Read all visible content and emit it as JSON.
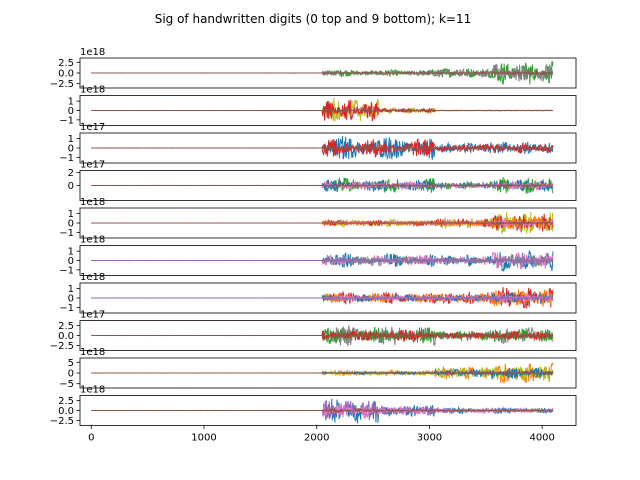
{
  "figure": {
    "title": "Sig of handwritten digits (0 top and 9 bottom); k=11"
  },
  "chart_data": {
    "type": "line",
    "title": "Sig of handwritten digits (0 top and 9 bottom); k=11",
    "shared_x": {
      "xlim": [
        -100,
        4300
      ],
      "ticks": [
        0,
        1000,
        2000,
        3000,
        4000
      ],
      "tick_labels": [
        "0",
        "1000",
        "2000",
        "3000",
        "4000"
      ],
      "signal_range": [
        0,
        4095
      ]
    },
    "palette": [
      "#1f77b4",
      "#ff7f0e",
      "#2ca02c",
      "#d62728",
      "#9467bd",
      "#8c564b",
      "#e377c2",
      "#7f7f7f",
      "#bcbd22",
      "#17becf"
    ],
    "subplots": [
      {
        "digit": 0,
        "offset_text": "1e18",
        "ylim": [
          -3.5,
          3.5
        ],
        "yticks": [
          2.5,
          0.0,
          -2.5
        ],
        "ytick_labels": [
          "2.5",
          "0.0",
          "−2.5"
        ],
        "series_colors": [
          "#2ca02c",
          "#7f7f7f",
          "#8c564b"
        ],
        "bursts": [
          {
            "start": 2050,
            "end": 3050,
            "amp": 0.8
          },
          {
            "start": 3050,
            "end": 3550,
            "amp": 1.2
          },
          {
            "start": 3550,
            "end": 4095,
            "amp": 2.8
          }
        ]
      },
      {
        "digit": 1,
        "offset_text": "1e18",
        "ylim": [
          -1.6,
          1.6
        ],
        "yticks": [
          1,
          0,
          -1
        ],
        "ytick_labels": [
          "1",
          "0",
          "−1"
        ],
        "series_colors": [
          "#bcbd22",
          "#d62728",
          "#8c564b"
        ],
        "bursts": [
          {
            "start": 2050,
            "end": 2550,
            "amp": 1.5
          },
          {
            "start": 2550,
            "end": 3050,
            "amp": 0.3
          },
          {
            "start": 3050,
            "end": 4095,
            "amp": 0.04
          }
        ]
      },
      {
        "digit": 2,
        "offset_text": "1e17",
        "ylim": [
          -1.6,
          1.6
        ],
        "yticks": [
          1,
          0,
          -1
        ],
        "ytick_labels": [
          "1",
          "0",
          "−1"
        ],
        "series_colors": [
          "#1f77b4",
          "#d62728",
          "#8c564b"
        ],
        "bursts": [
          {
            "start": 2050,
            "end": 3050,
            "amp": 1.3
          },
          {
            "start": 3050,
            "end": 3550,
            "amp": 0.6
          },
          {
            "start": 3550,
            "end": 4095,
            "amp": 0.7
          }
        ]
      },
      {
        "digit": 3,
        "offset_text": "1e17",
        "ylim": [
          -2.3,
          2.3
        ],
        "yticks": [
          2,
          0
        ],
        "ytick_labels": [
          "2",
          "0"
        ],
        "series_colors": [
          "#2ca02c",
          "#1f77b4",
          "#e377c2",
          "#8c564b"
        ],
        "bursts": [
          {
            "start": 2050,
            "end": 3050,
            "amp": 1.2
          },
          {
            "start": 3050,
            "end": 3550,
            "amp": 0.6
          },
          {
            "start": 3550,
            "end": 4095,
            "amp": 1.3
          }
        ]
      },
      {
        "digit": 4,
        "offset_text": "1e18",
        "ylim": [
          -1.6,
          1.6
        ],
        "yticks": [
          1,
          0,
          -1
        ],
        "ytick_labels": [
          "1",
          "0",
          "−1"
        ],
        "series_colors": [
          "#bcbd22",
          "#d62728",
          "#ff7f0e",
          "#e377c2",
          "#8c564b"
        ],
        "bursts": [
          {
            "start": 2050,
            "end": 3050,
            "amp": 0.4
          },
          {
            "start": 3050,
            "end": 3550,
            "amp": 0.6
          },
          {
            "start": 3550,
            "end": 4095,
            "amp": 1.3
          }
        ]
      },
      {
        "digit": 5,
        "offset_text": "1e18",
        "ylim": [
          -1.6,
          1.6
        ],
        "yticks": [
          1,
          0,
          -1
        ],
        "ytick_labels": [
          "1",
          "0",
          "−1"
        ],
        "series_colors": [
          "#1f77b4",
          "#e377c2",
          "#7f7f7f",
          "#9467bd"
        ],
        "bursts": [
          {
            "start": 2050,
            "end": 3050,
            "amp": 0.8
          },
          {
            "start": 3050,
            "end": 3550,
            "amp": 0.6
          },
          {
            "start": 3550,
            "end": 4095,
            "amp": 1.2
          }
        ]
      },
      {
        "digit": 6,
        "offset_text": "1e18",
        "ylim": [
          -1.6,
          1.6
        ],
        "yticks": [
          1,
          0,
          -1
        ],
        "ytick_labels": [
          "1",
          "0",
          "−1"
        ],
        "series_colors": [
          "#d62728",
          "#ff7f0e",
          "#1f77b4",
          "#e377c2",
          "#9467bd"
        ],
        "bursts": [
          {
            "start": 2050,
            "end": 3050,
            "amp": 0.7
          },
          {
            "start": 3050,
            "end": 3550,
            "amp": 0.7
          },
          {
            "start": 3550,
            "end": 4095,
            "amp": 1.3
          }
        ]
      },
      {
        "digit": 7,
        "offset_text": "1e17",
        "ylim": [
          -3.8,
          3.8
        ],
        "yticks": [
          2.5,
          0.0,
          -2.5
        ],
        "ytick_labels": [
          "2.5",
          "0.0",
          "−2.5"
        ],
        "series_colors": [
          "#7f7f7f",
          "#2ca02c",
          "#d62728",
          "#8c564b"
        ],
        "bursts": [
          {
            "start": 2050,
            "end": 3050,
            "amp": 2.8
          },
          {
            "start": 3050,
            "end": 3550,
            "amp": 1.5
          },
          {
            "start": 3550,
            "end": 4095,
            "amp": 2.2
          }
        ]
      },
      {
        "digit": 8,
        "offset_text": "1e18",
        "ylim": [
          -7.0,
          7.0
        ],
        "yticks": [
          5,
          0,
          -5
        ],
        "ytick_labels": [
          "5",
          "0",
          "−5"
        ],
        "series_colors": [
          "#ff7f0e",
          "#bcbd22",
          "#1f77b4",
          "#8c564b"
        ],
        "bursts": [
          {
            "start": 2050,
            "end": 3050,
            "amp": 1.2
          },
          {
            "start": 3050,
            "end": 3550,
            "amp": 3.5
          },
          {
            "start": 3550,
            "end": 4095,
            "amp": 5.0
          }
        ]
      },
      {
        "digit": 9,
        "offset_text": "1e18",
        "ylim": [
          -3.8,
          3.8
        ],
        "yticks": [
          2.5,
          0.0,
          -2.5
        ],
        "ytick_labels": [
          "2.5",
          "0.0",
          "−2.5"
        ],
        "series_colors": [
          "#1f77b4",
          "#9467bd",
          "#e377c2",
          "#8c564b"
        ],
        "bursts": [
          {
            "start": 2050,
            "end": 2550,
            "amp": 3.5
          },
          {
            "start": 2550,
            "end": 3050,
            "amp": 1.6
          },
          {
            "start": 3050,
            "end": 4095,
            "amp": 0.8
          }
        ]
      }
    ]
  }
}
